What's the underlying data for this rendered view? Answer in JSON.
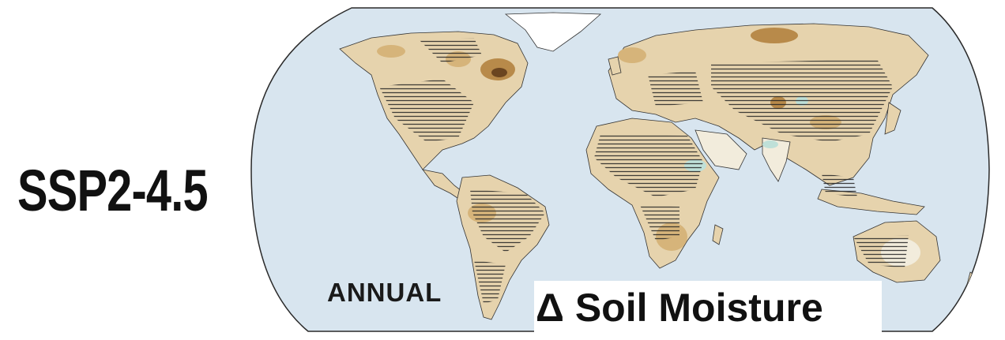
{
  "scenario_label": "SSP2-4.5",
  "period_label": "ANNUAL",
  "variable_label": "Δ Soil Moisture",
  "colors": {
    "ocean": "#d8e5ef",
    "land_dry_light": "#e6d3ad",
    "land_dry_mid": "#d6b47a",
    "land_dry_strong": "#b88a4a",
    "land_dry_extreme": "#6b4520",
    "land_neutral": "#f2ecdc",
    "land_wet": "#bfe0d8",
    "ice": "#ffffff",
    "hatching": "#222222"
  }
}
